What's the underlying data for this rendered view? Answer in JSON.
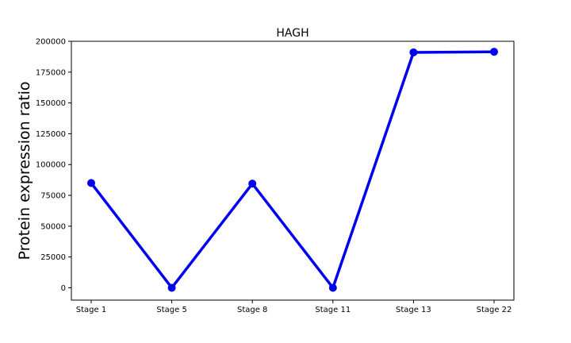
{
  "chart_data": {
    "type": "line",
    "title": "HAGH",
    "xlabel": "",
    "ylabel": "Protein expression ratio",
    "categories": [
      "Stage 1",
      "Stage 5",
      "Stage 8",
      "Stage 11",
      "Stage 13",
      "Stage 22"
    ],
    "series": [
      {
        "values": [
          85000,
          0,
          84500,
          0,
          191000,
          191500
        ],
        "color": "#0000ee"
      }
    ],
    "y_ticks": [
      0,
      25000,
      50000,
      75000,
      100000,
      125000,
      150000,
      175000,
      200000
    ],
    "y_tick_labels": [
      "0",
      "25000",
      "50000",
      "75000",
      "100000",
      "125000",
      "150000",
      "175000",
      "200000"
    ],
    "ylim": [
      -10000,
      200000
    ],
    "grid": false,
    "legend": "none"
  }
}
